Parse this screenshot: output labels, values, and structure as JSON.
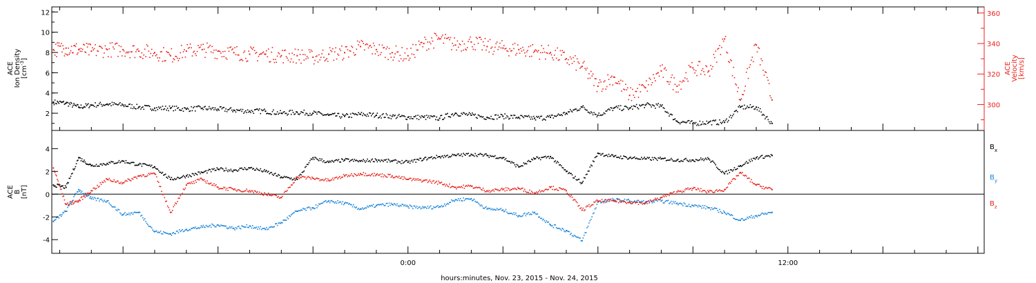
{
  "x_axis_title": "hours:minutes, Nov. 23, 2015 - Nov. 24, 2015",
  "chart_data": [
    {
      "type": "scatter",
      "panel": "top",
      "x_unit": "hours relative to Nov. 24, 2015 00:00",
      "xlim": [
        -11.25,
        18.2
      ],
      "x_tick_labels": [
        {
          "x": 0,
          "label": "0:00"
        },
        {
          "x": 12,
          "label": "12:00"
        }
      ],
      "left_axis": {
        "label_lines": [
          "ACE",
          "Ion Density",
          "[cm^-3]"
        ],
        "ylim": [
          0.3,
          12.5
        ],
        "ticks": [
          2,
          4,
          6,
          8,
          10,
          12
        ]
      },
      "right_axis": {
        "label_lines": [
          "ACE",
          "Velocity",
          "[km/s]"
        ],
        "ylim": [
          283,
          364
        ],
        "ticks": [
          300,
          320,
          340,
          360
        ],
        "color": "#e8211a"
      },
      "series": [
        {
          "axis": "left",
          "color": "#000000",
          "x": [
            -11.2,
            -10.8,
            -10.4,
            -10.0,
            -9.5,
            -9.0,
            -8.5,
            -8.0,
            -7.5,
            -7.0,
            -6.5,
            -6.0,
            -5.5,
            -5.0,
            -4.5,
            -4.0,
            -3.5,
            -3.0,
            -2.5,
            -2.0,
            -1.5,
            -1.0,
            -0.5,
            0.0,
            0.5,
            1.0,
            1.5,
            2.0,
            2.5,
            3.0,
            3.5,
            4.0,
            4.5,
            5.0,
            5.5,
            6.0,
            6.5,
            7.0,
            7.5,
            8.0,
            8.5,
            9.0,
            9.5,
            10.0,
            10.5,
            11.0,
            11.5
          ],
          "y": [
            3.1,
            3.0,
            2.6,
            2.8,
            2.9,
            2.8,
            2.6,
            2.5,
            2.5,
            2.4,
            2.5,
            2.4,
            2.3,
            2.2,
            2.2,
            2.0,
            2.1,
            2.0,
            1.8,
            1.7,
            1.9,
            1.8,
            1.7,
            1.6,
            1.6,
            1.5,
            2.0,
            1.8,
            1.6,
            1.7,
            1.6,
            1.5,
            1.6,
            2.0,
            2.6,
            1.8,
            2.5,
            2.5,
            2.8,
            2.7,
            1.2,
            1.0,
            1.1,
            1.1,
            2.6,
            2.6,
            1.0
          ]
        },
        {
          "axis": "right",
          "color": "#e8211a",
          "x": [
            -11.2,
            -10.8,
            -10.4,
            -10.0,
            -9.5,
            -9.0,
            -8.5,
            -8.0,
            -7.5,
            -7.0,
            -6.5,
            -6.0,
            -5.5,
            -5.0,
            -4.5,
            -4.0,
            -3.5,
            -3.0,
            -2.5,
            -2.0,
            -1.5,
            -1.0,
            -0.5,
            0.0,
            0.5,
            1.0,
            1.5,
            2.0,
            2.5,
            3.0,
            3.5,
            4.0,
            4.5,
            5.0,
            5.5,
            6.0,
            6.5,
            7.0,
            7.5,
            8.0,
            8.5,
            9.0,
            9.5,
            10.0,
            10.5,
            11.0,
            11.5
          ],
          "y": [
            336,
            337,
            336,
            335,
            336,
            336,
            335,
            334,
            332,
            335,
            336,
            335,
            334,
            333,
            333,
            332,
            332,
            331,
            333,
            334,
            338,
            336,
            334,
            332,
            340,
            343,
            339,
            341,
            338,
            337,
            336,
            335,
            334,
            330,
            325,
            312,
            318,
            306,
            311,
            322,
            312,
            324,
            322,
            343,
            303,
            339,
            303
          ]
        }
      ]
    },
    {
      "type": "scatter",
      "panel": "bottom",
      "x_unit": "hours relative to Nov. 24, 2015 00:00",
      "xlim": [
        -11.25,
        18.2
      ],
      "y_axis": {
        "label_lines": [
          "ACE",
          "B",
          "[nT]"
        ],
        "ylim": [
          -5.2,
          5.6
        ],
        "ticks": [
          -4,
          -2,
          0,
          2,
          4
        ]
      },
      "zero_line": true,
      "legend": [
        "B",
        "B",
        "B"
      ],
      "legend_subscripts": [
        "x",
        "y",
        "z"
      ],
      "legend_placement": "right",
      "series": [
        {
          "color": "#000000",
          "x": [
            -11.2,
            -10.8,
            -10.4,
            -10.0,
            -9.5,
            -9.0,
            -8.5,
            -8.0,
            -7.5,
            -7.0,
            -6.5,
            -6.0,
            -5.5,
            -5.0,
            -4.5,
            -4.0,
            -3.5,
            -3.0,
            -2.5,
            -2.0,
            -1.5,
            -1.0,
            -0.5,
            0.0,
            0.5,
            1.0,
            1.5,
            2.0,
            2.5,
            3.0,
            3.5,
            4.0,
            4.5,
            5.0,
            5.5,
            6.0,
            6.5,
            7.0,
            7.5,
            8.0,
            8.5,
            9.0,
            9.5,
            10.0,
            10.5,
            11.0,
            11.5
          ],
          "y": [
            0.8,
            0.6,
            3.2,
            2.5,
            2.7,
            2.9,
            2.6,
            2.4,
            1.3,
            1.6,
            1.9,
            2.2,
            2.1,
            2.3,
            2.0,
            1.5,
            1.3,
            3.2,
            2.8,
            3.0,
            2.9,
            3.0,
            2.9,
            2.8,
            3.1,
            3.3,
            3.4,
            3.5,
            3.4,
            3.2,
            2.4,
            3.1,
            3.3,
            2.0,
            1.0,
            3.6,
            3.3,
            3.2,
            3.1,
            3.1,
            3.0,
            3.0,
            3.1,
            1.8,
            2.5,
            3.2,
            3.4
          ]
        },
        {
          "color": "#1a84d8",
          "x": [
            -11.2,
            -10.8,
            -10.4,
            -10.0,
            -9.5,
            -9.0,
            -8.5,
            -8.0,
            -7.5,
            -7.0,
            -6.5,
            -6.0,
            -5.5,
            -5.0,
            -4.5,
            -4.0,
            -3.5,
            -3.0,
            -2.5,
            -2.0,
            -1.5,
            -1.0,
            -0.5,
            0.0,
            0.5,
            1.0,
            1.5,
            2.0,
            2.5,
            3.0,
            3.5,
            4.0,
            4.5,
            5.0,
            5.5,
            6.0,
            6.5,
            7.0,
            7.5,
            8.0,
            8.5,
            9.0,
            9.5,
            10.0,
            10.5,
            11.0,
            11.5
          ],
          "y": [
            -2.4,
            -1.5,
            0.4,
            -0.4,
            -0.6,
            -1.8,
            -1.6,
            -3.3,
            -3.5,
            -3.1,
            -2.9,
            -2.7,
            -3.0,
            -2.8,
            -3.1,
            -2.5,
            -1.5,
            -1.2,
            -0.6,
            -0.8,
            -1.3,
            -1.0,
            -0.9,
            -1.1,
            -1.2,
            -1.1,
            -0.5,
            -0.4,
            -1.3,
            -1.4,
            -1.9,
            -1.6,
            -2.7,
            -3.2,
            -4.1,
            -0.7,
            -0.5,
            -0.6,
            -0.7,
            -0.6,
            -0.8,
            -1.0,
            -1.2,
            -1.6,
            -2.3,
            -1.9,
            -1.6
          ]
        },
        {
          "color": "#e8211a",
          "x": [
            -11.2,
            -10.8,
            -10.4,
            -10.0,
            -9.5,
            -9.0,
            -8.5,
            -8.0,
            -7.5,
            -7.0,
            -6.5,
            -6.0,
            -5.5,
            -5.0,
            -4.5,
            -4.0,
            -3.5,
            -3.0,
            -2.5,
            -2.0,
            -1.5,
            -1.0,
            -0.5,
            0.0,
            0.5,
            1.0,
            1.5,
            2.0,
            2.5,
            3.0,
            3.5,
            4.0,
            4.5,
            5.0,
            5.5,
            6.0,
            6.5,
            7.0,
            7.5,
            8.0,
            8.5,
            9.0,
            9.5,
            10.0,
            10.5,
            11.0,
            11.5
          ],
          "y": [
            2.3,
            -0.9,
            -0.6,
            0.3,
            1.3,
            1.0,
            1.6,
            1.8,
            -1.6,
            0.8,
            1.3,
            0.6,
            0.4,
            0.3,
            0.0,
            -0.3,
            1.5,
            1.4,
            1.2,
            1.6,
            1.8,
            1.7,
            1.6,
            1.3,
            1.2,
            1.0,
            0.6,
            0.7,
            0.3,
            0.4,
            0.5,
            0.1,
            0.6,
            0.3,
            -1.4,
            -0.6,
            -0.6,
            -0.7,
            -0.8,
            -0.3,
            0.2,
            0.5,
            0.2,
            0.4,
            1.9,
            0.8,
            0.4
          ]
        }
      ]
    }
  ]
}
